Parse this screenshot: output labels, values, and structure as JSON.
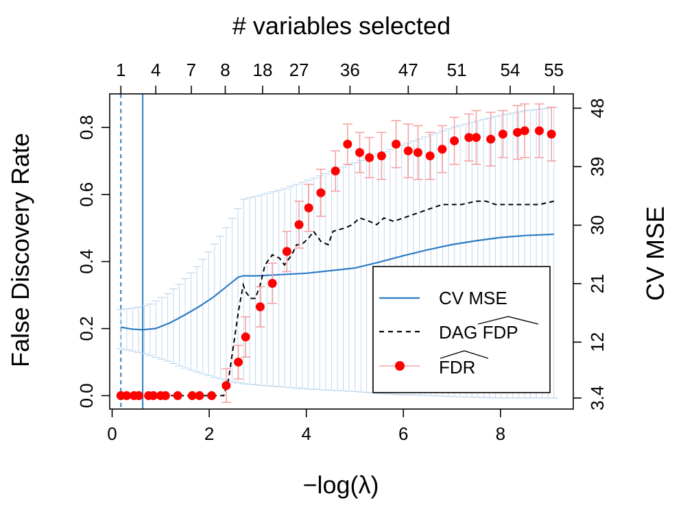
{
  "chart_data": {
    "type": "line",
    "title": "# variables selected",
    "xlabel": "−log(λ)",
    "ylabel": "False Discovery Rate",
    "y2label": "CV MSE",
    "xlim": [
      -0.05,
      9.5
    ],
    "ylim": [
      -0.04,
      0.9
    ],
    "y2lim": [
      1.7,
      50.2
    ],
    "x_ticks": [
      0,
      2,
      4,
      6,
      8
    ],
    "y_ticks": [
      0.0,
      0.2,
      0.4,
      0.6,
      0.8
    ],
    "y_tick_labels": [
      "0.0",
      "0.2",
      "0.4",
      "0.6",
      "0.8"
    ],
    "y2_ticks": [
      3.4,
      12,
      21,
      30,
      39,
      48
    ],
    "y2_tick_labels": [
      "3.4",
      "12",
      "21",
      "30",
      "39",
      "48"
    ],
    "top_ticks": {
      "x": [
        0.18,
        0.9,
        1.63,
        2.33,
        3.1,
        3.85,
        4.9,
        6.1,
        7.1,
        8.2,
        9.1
      ],
      "labels": [
        "1",
        "4",
        "7",
        "8",
        "18",
        "27",
        "36",
        "47",
        "51",
        "54",
        "55"
      ]
    },
    "vlines": [
      {
        "x": 0.18,
        "style": "dashed",
        "color": "#2b7bc4"
      },
      {
        "x": 0.63,
        "style": "solid",
        "color": "#2b7bc4"
      }
    ],
    "legend": {
      "position": "bottom-right",
      "entries": [
        {
          "label": "CV MSE"
        },
        {
          "label": "DAG FDP"
        },
        {
          "label": "FDR"
        }
      ]
    },
    "series": [
      {
        "name": "CV MSE",
        "axis": "y2",
        "color": "#2b7bc4",
        "x": [
          0.18,
          0.4,
          0.63,
          0.9,
          1.2,
          1.5,
          1.8,
          2.1,
          2.4,
          2.6,
          2.7,
          2.85,
          3.0,
          3.5,
          4.0,
          4.5,
          5.0,
          5.5,
          6.0,
          6.5,
          7.0,
          7.5,
          8.0,
          8.5,
          9.1
        ],
        "values": [
          14.3,
          14.0,
          13.9,
          14.1,
          15.0,
          16.2,
          17.5,
          19.0,
          20.8,
          22.0,
          22.2,
          22.2,
          22.2,
          22.4,
          22.6,
          23.0,
          23.4,
          24.3,
          25.3,
          26.2,
          27.0,
          27.6,
          28.1,
          28.4,
          28.6
        ]
      },
      {
        "name": "CV MSE error bars",
        "axis": "y2",
        "color": "#bdd7ee",
        "x": [
          0.18,
          0.5,
          0.8,
          1.1,
          1.4,
          1.7,
          2.0,
          2.3,
          2.55,
          2.7,
          3.0,
          3.5,
          4.0,
          4.5,
          5.0,
          5.5,
          6.0,
          6.5,
          7.0,
          7.5,
          8.0,
          8.5,
          9.1
        ],
        "upper": [
          17.0,
          17.3,
          17.9,
          19.2,
          21.0,
          23.2,
          26.0,
          29.0,
          32.0,
          34.0,
          34.5,
          35.5,
          36.8,
          38.2,
          39.6,
          41.0,
          42.4,
          43.7,
          45.0,
          46.0,
          46.9,
          47.6,
          48.1
        ],
        "lower": [
          11.0,
          10.5,
          9.9,
          9.2,
          8.3,
          7.5,
          6.8,
          6.2,
          5.8,
          5.6,
          5.4,
          5.1,
          4.8,
          4.6,
          4.4,
          4.1,
          3.9,
          3.8,
          3.6,
          3.5,
          3.4,
          3.4,
          3.4
        ]
      },
      {
        "name": "DAG FDP",
        "axis": "y",
        "color": "#000000",
        "x": [
          0.7,
          1.5,
          2.3,
          2.4,
          2.5,
          2.6,
          2.7,
          2.75,
          2.85,
          2.95,
          3.05,
          3.15,
          3.3,
          3.45,
          3.55,
          3.7,
          3.8,
          3.9,
          4.05,
          4.15,
          4.3,
          4.45,
          4.55,
          4.8,
          4.95,
          5.1,
          5.3,
          5.45,
          5.6,
          5.8,
          6.0,
          6.2,
          6.4,
          6.6,
          6.8,
          7.0,
          7.2,
          7.5,
          7.7,
          7.9,
          8.2,
          8.5,
          8.8,
          9.1
        ],
        "values": [
          0.0,
          0.0,
          0.0,
          0.05,
          0.15,
          0.25,
          0.33,
          0.31,
          0.29,
          0.29,
          0.33,
          0.39,
          0.42,
          0.41,
          0.39,
          0.42,
          0.45,
          0.45,
          0.47,
          0.49,
          0.46,
          0.45,
          0.49,
          0.5,
          0.51,
          0.53,
          0.52,
          0.51,
          0.53,
          0.52,
          0.53,
          0.54,
          0.55,
          0.56,
          0.57,
          0.57,
          0.57,
          0.58,
          0.58,
          0.57,
          0.57,
          0.57,
          0.57,
          0.58
        ]
      },
      {
        "name": "FDR",
        "axis": "y",
        "color": "#ff0000",
        "error_color": "#f4a3a3",
        "x": [
          0.18,
          0.3,
          0.45,
          0.55,
          0.75,
          0.85,
          1.0,
          1.1,
          1.35,
          1.65,
          1.8,
          2.05,
          2.35,
          2.6,
          2.75,
          3.05,
          3.3,
          3.6,
          3.85,
          4.05,
          4.3,
          4.6,
          4.85,
          5.1,
          5.3,
          5.55,
          5.85,
          6.1,
          6.3,
          6.55,
          6.8,
          7.05,
          7.35,
          7.5,
          7.8,
          8.05,
          8.35,
          8.5,
          8.8,
          9.05
        ],
        "values": [
          0.0,
          0.0,
          0.0,
          0.0,
          0.0,
          0.0,
          0.0,
          0.0,
          0.0,
          0.0,
          0.0,
          0.0,
          0.03,
          0.1,
          0.175,
          0.265,
          0.335,
          0.43,
          0.51,
          0.56,
          0.605,
          0.67,
          0.75,
          0.725,
          0.71,
          0.715,
          0.75,
          0.73,
          0.725,
          0.715,
          0.735,
          0.76,
          0.77,
          0.77,
          0.765,
          0.78,
          0.785,
          0.79,
          0.79,
          0.78
        ],
        "err": [
          0.0,
          0.0,
          0.0,
          0.0,
          0.0,
          0.0,
          0.0,
          0.0,
          0.0,
          0.0,
          0.0,
          0.0,
          0.05,
          0.05,
          0.06,
          0.06,
          0.06,
          0.06,
          0.07,
          0.07,
          0.07,
          0.06,
          0.06,
          0.06,
          0.06,
          0.07,
          0.07,
          0.08,
          0.08,
          0.07,
          0.07,
          0.07,
          0.07,
          0.08,
          0.08,
          0.07,
          0.08,
          0.08,
          0.08,
          0.08
        ]
      }
    ]
  }
}
